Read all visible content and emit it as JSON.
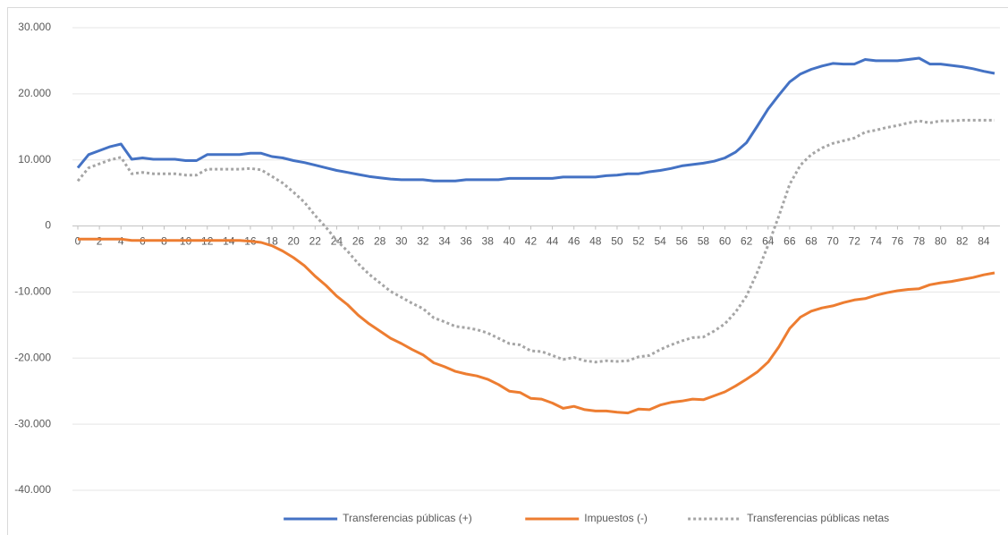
{
  "chart_data": {
    "type": "line",
    "x": [
      0,
      1,
      2,
      3,
      4,
      5,
      6,
      7,
      8,
      9,
      10,
      11,
      12,
      13,
      14,
      15,
      16,
      17,
      18,
      19,
      20,
      21,
      22,
      23,
      24,
      25,
      26,
      27,
      28,
      29,
      30,
      31,
      32,
      33,
      34,
      35,
      36,
      37,
      38,
      39,
      40,
      41,
      42,
      43,
      44,
      45,
      46,
      47,
      48,
      49,
      50,
      51,
      52,
      53,
      54,
      55,
      56,
      57,
      58,
      59,
      60,
      61,
      62,
      63,
      64,
      65,
      66,
      67,
      68,
      69,
      70,
      71,
      72,
      73,
      74,
      75,
      76,
      77,
      78,
      79,
      80,
      81,
      82,
      83,
      84,
      85
    ],
    "series": [
      {
        "name": "Transferencias públicas (+)",
        "color": "#4472c4",
        "dash": "solid",
        "values": [
          8800,
          10800,
          11400,
          12000,
          12400,
          10100,
          10300,
          10100,
          10100,
          10100,
          9900,
          9900,
          10800,
          10800,
          10800,
          10800,
          11000,
          11000,
          10500,
          10300,
          9900,
          9600,
          9200,
          8800,
          8400,
          8100,
          7800,
          7500,
          7300,
          7100,
          7000,
          7000,
          7000,
          6800,
          6800,
          6800,
          7000,
          7000,
          7000,
          7000,
          7200,
          7200,
          7200,
          7200,
          7200,
          7400,
          7400,
          7400,
          7400,
          7600,
          7700,
          7900,
          7900,
          8200,
          8400,
          8700,
          9100,
          9300,
          9500,
          9800,
          10300,
          11200,
          12600,
          15100,
          17700,
          19800,
          21800,
          23000,
          23700,
          24200,
          24600,
          24500,
          24500,
          25200,
          25000,
          25000,
          25000,
          25200,
          25400,
          24500,
          24500,
          24300,
          24100,
          23800,
          23400,
          23100
        ]
      },
      {
        "name": "Impuestos (-)",
        "color": "#ed7d31",
        "dash": "solid",
        "values": [
          -2000,
          -2000,
          -2000,
          -2000,
          -2000,
          -2200,
          -2200,
          -2200,
          -2200,
          -2200,
          -2200,
          -2200,
          -2200,
          -2200,
          -2200,
          -2200,
          -2300,
          -2500,
          -3000,
          -3800,
          -4800,
          -6000,
          -7600,
          -9000,
          -10600,
          -11900,
          -13500,
          -14800,
          -15900,
          -17000,
          -17800,
          -18700,
          -19500,
          -20700,
          -21300,
          -22000,
          -22400,
          -22700,
          -23200,
          -24000,
          -25000,
          -25200,
          -26100,
          -26200,
          -26800,
          -27600,
          -27300,
          -27800,
          -28000,
          -28000,
          -28200,
          -28300,
          -27700,
          -27800,
          -27100,
          -26700,
          -26500,
          -26200,
          -26300,
          -25700,
          -25100,
          -24200,
          -23200,
          -22100,
          -20600,
          -18300,
          -15500,
          -13800,
          -12900,
          -12400,
          -12100,
          -11600,
          -11200,
          -11000,
          -10500,
          -10100,
          -9800,
          -9600,
          -9500,
          -8900,
          -8600,
          -8400,
          -8100,
          -7800,
          -7400,
          -7100
        ]
      },
      {
        "name": "Transferencias públicas netas",
        "color": "#a5a5a5",
        "dash": "dot",
        "values": [
          6800,
          8800,
          9400,
          10000,
          10400,
          7900,
          8100,
          7900,
          7900,
          7900,
          7700,
          7700,
          8600,
          8600,
          8600,
          8600,
          8700,
          8500,
          7500,
          6500,
          5100,
          3600,
          1600,
          -200,
          -2200,
          -3800,
          -5700,
          -7300,
          -8600,
          -9900,
          -10800,
          -11700,
          -12500,
          -13900,
          -14500,
          -15200,
          -15400,
          -15700,
          -16200,
          -17000,
          -17800,
          -18000,
          -18900,
          -19000,
          -19600,
          -20200,
          -19900,
          -20400,
          -20600,
          -20400,
          -20500,
          -20400,
          -19800,
          -19600,
          -18700,
          -18000,
          -17400,
          -16900,
          -16800,
          -15900,
          -14800,
          -13000,
          -10600,
          -7000,
          -2900,
          1500,
          6300,
          9200,
          10800,
          11800,
          12500,
          12900,
          13300,
          14200,
          14500,
          14900,
          15200,
          15600,
          15900,
          15600,
          15900,
          15900,
          16000,
          16000,
          16000,
          16000
        ]
      }
    ],
    "xlim": [
      -0.5,
      85.5
    ],
    "xticks": [
      0,
      2,
      4,
      6,
      8,
      10,
      12,
      14,
      16,
      18,
      20,
      22,
      24,
      26,
      28,
      30,
      32,
      34,
      36,
      38,
      40,
      42,
      44,
      46,
      48,
      50,
      52,
      54,
      56,
      58,
      60,
      62,
      64,
      66,
      68,
      70,
      72,
      74,
      76,
      78,
      80,
      82,
      84
    ],
    "ylim": [
      -40000,
      30000
    ],
    "yticks": [
      {
        "value": -40000,
        "label": "-40.000"
      },
      {
        "value": -30000,
        "label": "-30.000"
      },
      {
        "value": -20000,
        "label": "-20.000"
      },
      {
        "value": -10000,
        "label": "-10.000"
      },
      0,
      {
        "value": 10000,
        "label": "10.000"
      },
      {
        "value": 20000,
        "label": "20.000"
      },
      {
        "value": 30000,
        "label": "30.000"
      }
    ],
    "grid": true,
    "legend": "bottom"
  }
}
